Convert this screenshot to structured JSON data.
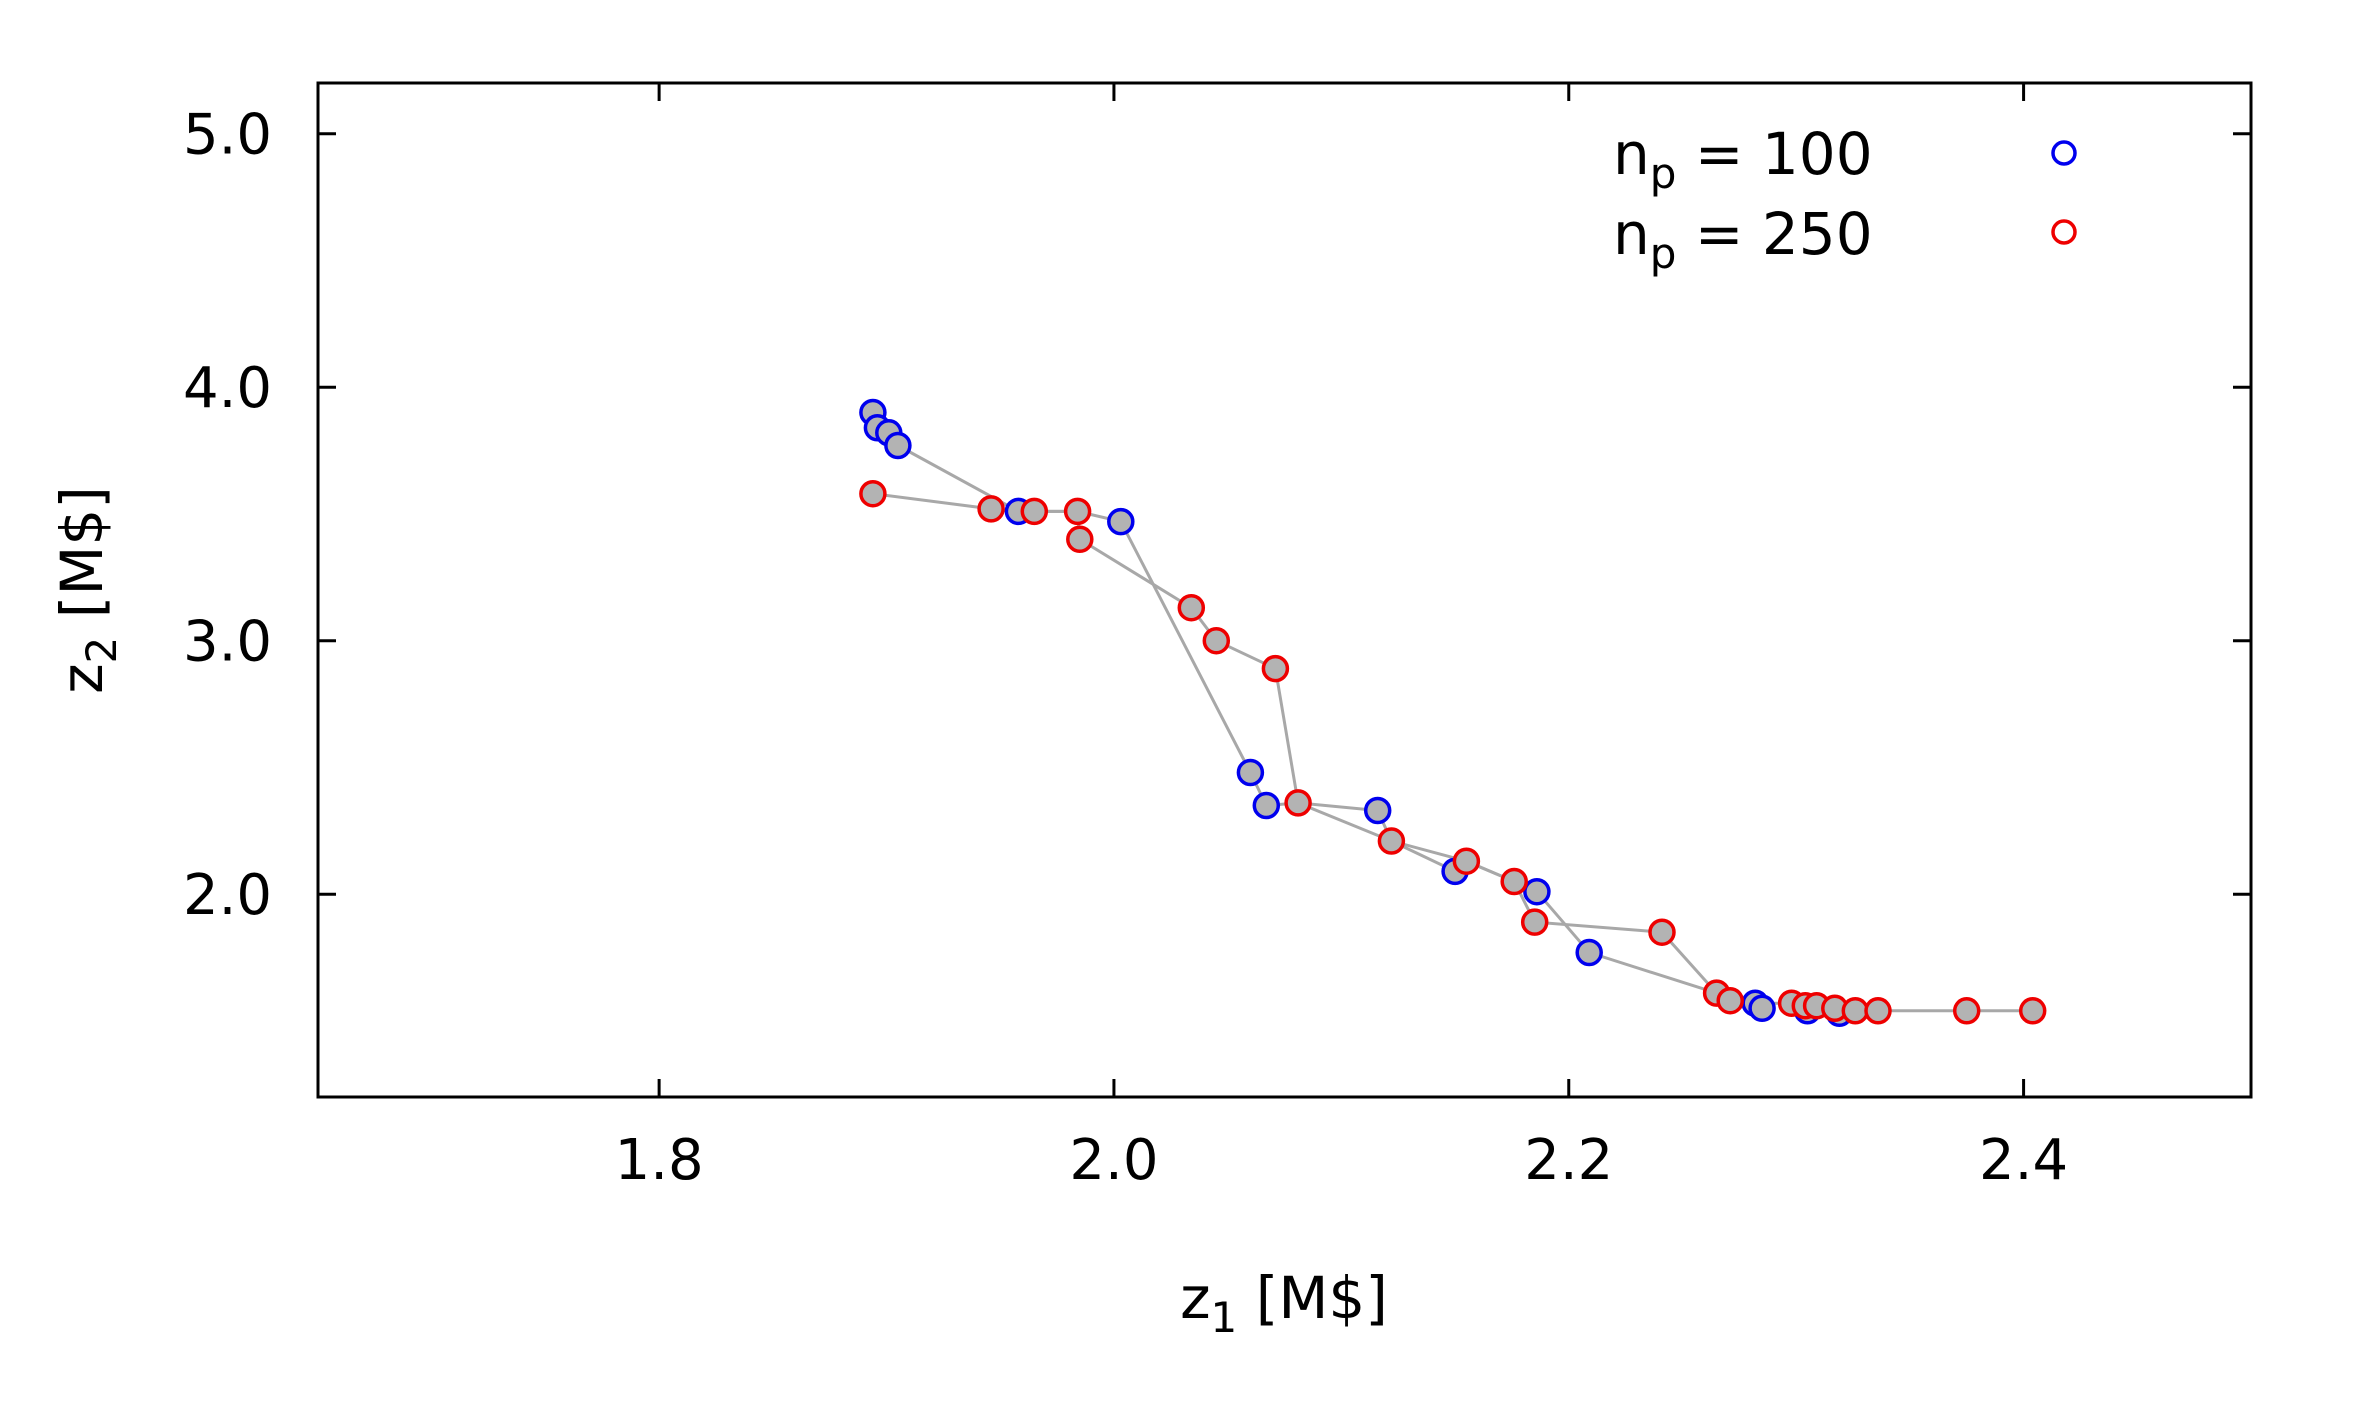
{
  "chart_data": {
    "type": "scatter",
    "title": "",
    "xlabel": {
      "main": "z",
      "sub": "1",
      "unit": " [M$]"
    },
    "ylabel": {
      "main": "z",
      "sub": "2",
      "unit": " [M$]"
    },
    "xlim": [
      1.65,
      2.5
    ],
    "ylim": [
      1.2,
      5.2
    ],
    "xticks": [
      1.8,
      2.0,
      2.2,
      2.4
    ],
    "xtick_labels": [
      "1.8",
      "2.0",
      "2.2",
      "2.4"
    ],
    "yticks": [
      2.0,
      3.0,
      4.0,
      5.0
    ],
    "ytick_labels": [
      "2.0",
      "3.0",
      "4.0",
      "5.0"
    ],
    "grid": false,
    "legend_position": "top-right",
    "marker_fill": "#b3b3b3",
    "line_color": "#a8a8a8",
    "series": [
      {
        "name": {
          "main": "n",
          "sub": "p",
          "rest": " = 100"
        },
        "color": "#0000ee",
        "points": [
          [
            1.894,
            3.9
          ],
          [
            1.896,
            3.84
          ],
          [
            1.901,
            3.82
          ],
          [
            1.905,
            3.77
          ],
          [
            1.958,
            3.51
          ],
          [
            2.003,
            3.47
          ],
          [
            2.06,
            2.48
          ],
          [
            2.067,
            2.35
          ],
          [
            2.116,
            2.33
          ],
          [
            2.15,
            2.09
          ],
          [
            2.186,
            2.01
          ],
          [
            2.209,
            1.77
          ],
          [
            2.282,
            1.57
          ],
          [
            2.285,
            1.55
          ],
          [
            2.305,
            1.54
          ],
          [
            2.319,
            1.53
          ]
        ]
      },
      {
        "name": {
          "main": "n",
          "sub": "p",
          "rest": " = 250"
        },
        "color": "#ee0000",
        "points": [
          [
            1.894,
            3.58
          ],
          [
            1.946,
            3.52
          ],
          [
            1.965,
            3.51
          ],
          [
            1.984,
            3.51
          ],
          [
            1.985,
            3.4
          ],
          [
            2.034,
            3.13
          ],
          [
            2.045,
            3.0
          ],
          [
            2.071,
            2.89
          ],
          [
            2.081,
            2.36
          ],
          [
            2.122,
            2.21
          ],
          [
            2.155,
            2.13
          ],
          [
            2.176,
            2.05
          ],
          [
            2.185,
            1.89
          ],
          [
            2.241,
            1.85
          ],
          [
            2.265,
            1.61
          ],
          [
            2.271,
            1.58
          ],
          [
            2.298,
            1.57
          ],
          [
            2.304,
            1.56
          ],
          [
            2.309,
            1.56
          ],
          [
            2.317,
            1.55
          ],
          [
            2.326,
            1.54
          ],
          [
            2.336,
            1.54
          ],
          [
            2.375,
            1.54
          ],
          [
            2.404,
            1.54
          ]
        ]
      }
    ],
    "front_line": [
      [
        1.894,
        3.58
      ],
      [
        1.946,
        3.52
      ],
      [
        1.958,
        3.51
      ],
      [
        1.984,
        3.51
      ],
      [
        2.003,
        3.47
      ],
      [
        2.06,
        2.48
      ],
      [
        2.067,
        2.35
      ],
      [
        2.081,
        2.36
      ],
      [
        2.116,
        2.33
      ],
      [
        2.122,
        2.21
      ],
      [
        2.15,
        2.09
      ],
      [
        2.155,
        2.13
      ],
      [
        2.176,
        2.05
      ],
      [
        2.185,
        1.89
      ],
      [
        2.241,
        1.85
      ],
      [
        2.265,
        1.61
      ],
      [
        2.271,
        1.58
      ],
      [
        2.282,
        1.57
      ],
      [
        2.298,
        1.57
      ],
      [
        2.304,
        1.56
      ],
      [
        2.309,
        1.56
      ],
      [
        2.317,
        1.55
      ],
      [
        2.326,
        1.54
      ],
      [
        2.336,
        1.54
      ],
      [
        2.375,
        1.54
      ],
      [
        2.404,
        1.54
      ]
    ],
    "secondary_line": [
      [
        1.905,
        3.77
      ],
      [
        1.958,
        3.51
      ],
      [
        1.965,
        3.51
      ],
      [
        1.984,
        3.51
      ],
      [
        1.985,
        3.4
      ],
      [
        2.034,
        3.13
      ],
      [
        2.045,
        3.0
      ],
      [
        2.071,
        2.89
      ],
      [
        2.081,
        2.36
      ],
      [
        2.122,
        2.21
      ],
      [
        2.155,
        2.13
      ],
      [
        2.176,
        2.05
      ],
      [
        2.186,
        2.01
      ],
      [
        2.209,
        1.77
      ],
      [
        2.265,
        1.61
      ]
    ]
  }
}
